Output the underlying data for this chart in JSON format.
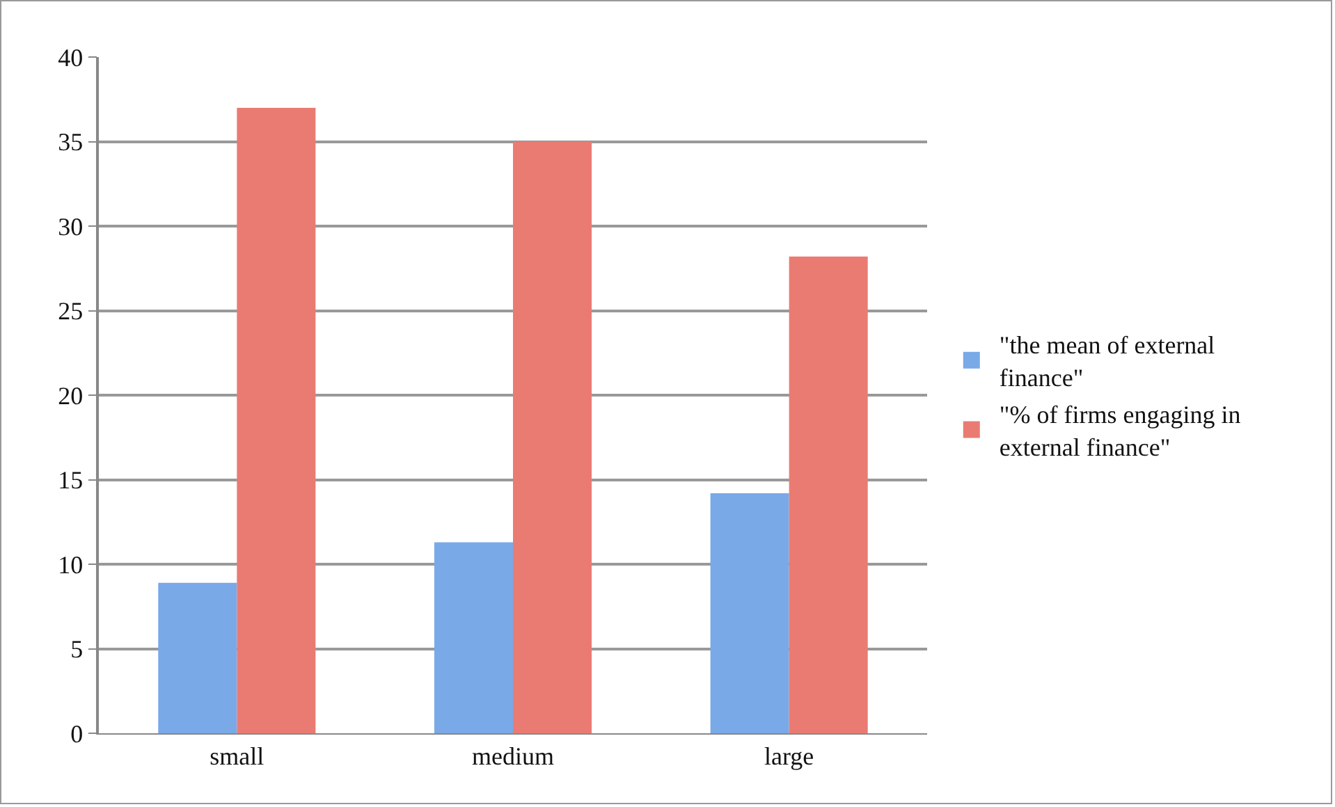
{
  "chart_data": {
    "type": "bar",
    "categories": [
      "small",
      "medium",
      "large"
    ],
    "series": [
      {
        "name": "\"the mean of external finance\"",
        "color": "#7aa9e8",
        "values": [
          8.9,
          11.3,
          14.2
        ]
      },
      {
        "name": "\"% of firms engaging in external finance\"",
        "color": "#ea7b73",
        "values": [
          37,
          35,
          28.2
        ]
      }
    ],
    "ylim": [
      0,
      40
    ],
    "yticks": [
      0,
      5,
      10,
      15,
      20,
      25,
      30,
      35,
      40
    ],
    "grid": "y",
    "legend": "right"
  }
}
